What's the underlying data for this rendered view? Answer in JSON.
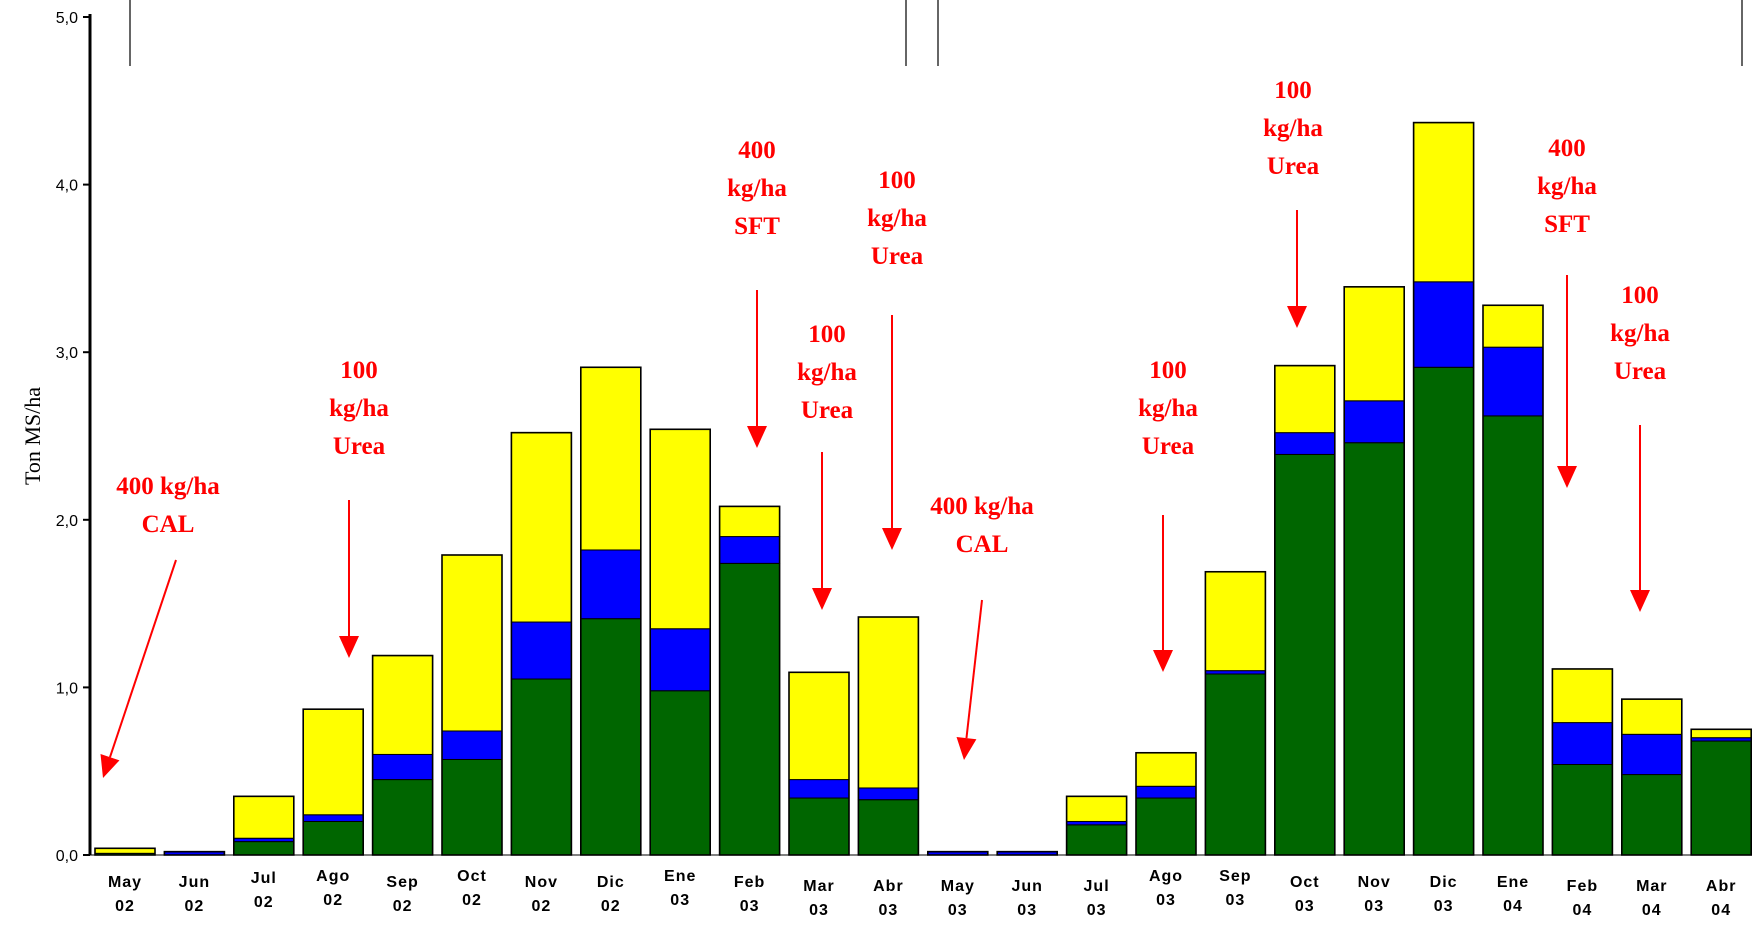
{
  "chart_data": {
    "type": "bar",
    "stacked": true,
    "ylabel": "Ton MS/ha",
    "ylim": [
      0,
      5
    ],
    "yticks": [
      "0,0",
      "1,0",
      "2,0",
      "3,0",
      "4,0",
      "5,0"
    ],
    "grid": false,
    "legend": "none",
    "categories": [
      [
        "May",
        "02"
      ],
      [
        "Jun",
        "02"
      ],
      [
        "Jul",
        "02"
      ],
      [
        "Ago",
        "02"
      ],
      [
        "Sep",
        "02"
      ],
      [
        "Oct",
        "02"
      ],
      [
        "Nov",
        "02"
      ],
      [
        "Dic",
        "02"
      ],
      [
        "Ene",
        "03"
      ],
      [
        "Feb",
        "03"
      ],
      [
        "Mar",
        "03"
      ],
      [
        "Abr",
        "03"
      ],
      [
        "May",
        "03"
      ],
      [
        "Jun",
        "03"
      ],
      [
        "Jul",
        "03"
      ],
      [
        "Ago",
        "03"
      ],
      [
        "Sep",
        "03"
      ],
      [
        "Oct",
        "03"
      ],
      [
        "Nov",
        "03"
      ],
      [
        "Dic",
        "03"
      ],
      [
        "Ene",
        "04"
      ],
      [
        "Feb",
        "04"
      ],
      [
        "Mar",
        "04"
      ],
      [
        "Abr",
        "04"
      ]
    ],
    "series": [
      {
        "color": "#006600",
        "values": [
          0.01,
          0.0,
          0.08,
          0.2,
          0.45,
          0.57,
          1.05,
          1.41,
          0.98,
          1.74,
          0.34,
          0.33,
          0.0,
          0.0,
          0.18,
          0.34,
          1.08,
          2.39,
          2.46,
          2.91,
          2.62,
          0.54,
          0.48,
          0.68
        ]
      },
      {
        "color": "#0000ff",
        "values": [
          0.0,
          0.02,
          0.02,
          0.04,
          0.15,
          0.17,
          0.34,
          0.41,
          0.37,
          0.16,
          0.11,
          0.07,
          0.02,
          0.02,
          0.02,
          0.07,
          0.02,
          0.13,
          0.25,
          0.51,
          0.41,
          0.25,
          0.24,
          0.02
        ]
      },
      {
        "color": "#ffff00",
        "values": [
          0.03,
          0.0,
          0.25,
          0.63,
          0.59,
          1.05,
          1.13,
          1.09,
          1.19,
          0.18,
          0.64,
          1.02,
          0.0,
          0.0,
          0.15,
          0.2,
          0.59,
          0.4,
          0.68,
          0.95,
          0.25,
          0.32,
          0.21,
          0.05
        ]
      }
    ],
    "annotations": [
      {
        "lines": [
          "400 kg/ha",
          "CAL"
        ],
        "target": "May 02"
      },
      {
        "lines": [
          "100",
          "kg/ha",
          "Urea"
        ],
        "target": "Ago 02"
      },
      {
        "lines": [
          "400",
          "kg/ha",
          "SFT"
        ],
        "target": "Feb 03"
      },
      {
        "lines": [
          "100",
          "kg/ha",
          "Urea"
        ],
        "target": "Mar 03"
      },
      {
        "lines": [
          "100",
          "kg/ha",
          "Urea"
        ],
        "target": "Abr 03"
      },
      {
        "lines": [
          "400 kg/ha",
          "CAL"
        ],
        "target": "May 03"
      },
      {
        "lines": [
          "100",
          "kg/ha",
          "Urea"
        ],
        "target": "Ago 03"
      },
      {
        "lines": [
          "100",
          "kg/ha",
          "Urea"
        ],
        "target": "Oct 03"
      },
      {
        "lines": [
          "400",
          "kg/ha",
          "SFT"
        ],
        "target": "Feb 04"
      },
      {
        "lines": [
          "100",
          "kg/ha",
          "Urea"
        ],
        "target": "Mar 04"
      }
    ]
  }
}
